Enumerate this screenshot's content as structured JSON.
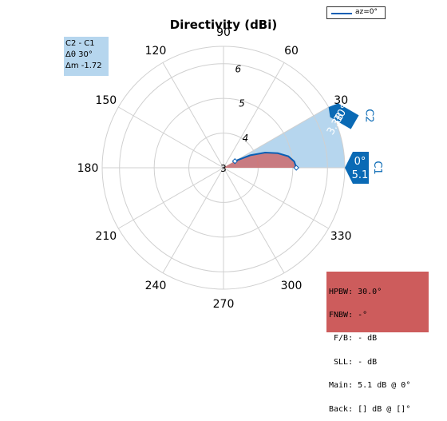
{
  "chart_data": {
    "type": "polar",
    "title": "Directivity (dBi)",
    "r_ticks": [
      "3",
      "4",
      "5",
      "6"
    ],
    "r_lim": [
      3,
      6.5
    ],
    "angle_ticks": [
      "0",
      "30",
      "60",
      "90",
      "120",
      "150",
      "180",
      "210",
      "240",
      "270",
      "300",
      "330"
    ],
    "grid": true,
    "series": [
      {
        "name": "az=0°",
        "theta_deg": [
          0,
          5,
          10,
          15,
          20,
          25,
          30
        ],
        "r": [
          5.1,
          5.05,
          4.9,
          4.62,
          4.28,
          3.85,
          3.38
        ],
        "color": "#0a5fb4"
      }
    ],
    "legend": "top-right",
    "cursors": [
      {
        "label": "C1",
        "angle_text": "0°",
        "value_text": "5.1",
        "angle": 0,
        "r": 5.1
      },
      {
        "label": "C2",
        "angle_text": "30°",
        "value_text": "3.38",
        "angle": 30,
        "r": 3.38
      }
    ],
    "span_deg": [
      0,
      30
    ],
    "span_color": "#b6d6ee",
    "fill_color": "#cd5c5c",
    "delta_box": [
      "C2 - C1",
      "Δθ 30°",
      "Δm -1.72"
    ],
    "stats_box": [
      "HPBW: 30.0°",
      "FNBW: -°",
      " F/B: - dB",
      " SLL: - dB",
      "Main: 5.1 dB @ 0°",
      "Back: [] dB @ []°"
    ]
  }
}
